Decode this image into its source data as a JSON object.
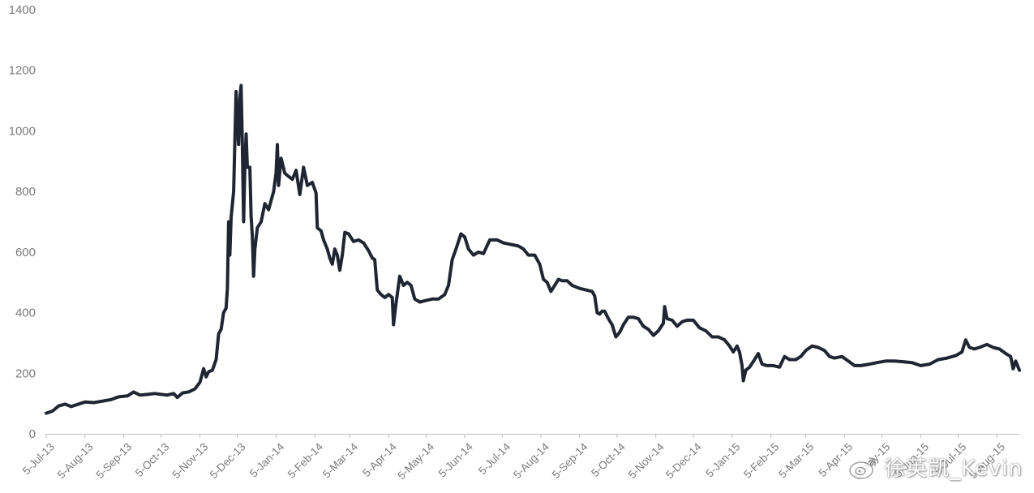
{
  "chart_data": {
    "type": "line",
    "title": "",
    "xlabel": "",
    "ylabel": "",
    "ylim": [
      0,
      1400
    ],
    "yticks": [
      0,
      200,
      400,
      600,
      800,
      1000,
      1200,
      1400
    ],
    "grid": false,
    "legend": "none",
    "line_color": "#1f2532",
    "xticklabels": [
      "5-Jul-13",
      "5-Aug-13",
      "5-Sep-13",
      "5-Oct-13",
      "5-Nov-13",
      "5-Dec-13",
      "5-Jan-14",
      "5-Feb-14",
      "5-Mar-14",
      "5-Apr-14",
      "5-May-14",
      "5-Jun-14",
      "5-Jul-14",
      "5-Aug-14",
      "5-Sep-14",
      "5-Oct-14",
      "5-Nov-14",
      "5-Dec-14",
      "5-Jan-15",
      "5-Feb-15",
      "5-Mar-15",
      "5-Apr-15",
      "5-May-15",
      "5-Jun-15",
      "5-Jul-15",
      "5-Aug-15"
    ],
    "series": [
      {
        "points": [
          [
            "2013-07-05",
            68
          ],
          [
            "2013-07-10",
            75
          ],
          [
            "2013-07-15",
            92
          ],
          [
            "2013-07-20",
            98
          ],
          [
            "2013-07-25",
            90
          ],
          [
            "2013-07-30",
            97
          ],
          [
            "2013-08-05",
            105
          ],
          [
            "2013-08-12",
            103
          ],
          [
            "2013-08-19",
            108
          ],
          [
            "2013-08-26",
            113
          ],
          [
            "2013-09-01",
            122
          ],
          [
            "2013-09-08",
            125
          ],
          [
            "2013-09-13",
            138
          ],
          [
            "2013-09-18",
            128
          ],
          [
            "2013-09-24",
            130
          ],
          [
            "2013-09-30",
            133
          ],
          [
            "2013-10-05",
            130
          ],
          [
            "2013-10-10",
            128
          ],
          [
            "2013-10-15",
            133
          ],
          [
            "2013-10-18",
            120
          ],
          [
            "2013-10-22",
            135
          ],
          [
            "2013-10-27",
            138
          ],
          [
            "2013-11-01",
            148
          ],
          [
            "2013-11-05",
            170
          ],
          [
            "2013-11-08",
            215
          ],
          [
            "2013-11-10",
            188
          ],
          [
            "2013-11-12",
            205
          ],
          [
            "2013-11-15",
            210
          ],
          [
            "2013-11-18",
            245
          ],
          [
            "2013-11-20",
            330
          ],
          [
            "2013-11-22",
            345
          ],
          [
            "2013-11-24",
            400
          ],
          [
            "2013-11-26",
            415
          ],
          [
            "2013-11-27",
            480
          ],
          [
            "2013-11-28",
            700
          ],
          [
            "2013-11-29",
            590
          ],
          [
            "2013-11-30",
            715
          ],
          [
            "2013-12-02",
            800
          ],
          [
            "2013-12-04",
            1130
          ],
          [
            "2013-12-05",
            1020
          ],
          [
            "2013-12-06",
            955
          ],
          [
            "2013-12-07",
            1110
          ],
          [
            "2013-12-08",
            1150
          ],
          [
            "2013-12-09",
            960
          ],
          [
            "2013-12-10",
            700
          ],
          [
            "2013-12-11",
            880
          ],
          [
            "2013-12-12",
            990
          ],
          [
            "2013-12-13",
            880
          ],
          [
            "2013-12-15",
            880
          ],
          [
            "2013-12-16",
            720
          ],
          [
            "2013-12-17",
            650
          ],
          [
            "2013-12-18",
            520
          ],
          [
            "2013-12-19",
            610
          ],
          [
            "2013-12-21",
            680
          ],
          [
            "2013-12-24",
            700
          ],
          [
            "2013-12-27",
            760
          ],
          [
            "2013-12-30",
            740
          ],
          [
            "2014-01-03",
            800
          ],
          [
            "2014-01-05",
            860
          ],
          [
            "2014-01-06",
            955
          ],
          [
            "2014-01-07",
            820
          ],
          [
            "2014-01-09",
            910
          ],
          [
            "2014-01-12",
            860
          ],
          [
            "2014-01-15",
            850
          ],
          [
            "2014-01-18",
            840
          ],
          [
            "2014-01-21",
            870
          ],
          [
            "2014-01-24",
            790
          ],
          [
            "2014-01-27",
            880
          ],
          [
            "2014-01-30",
            820
          ],
          [
            "2014-02-03",
            830
          ],
          [
            "2014-02-06",
            795
          ],
          [
            "2014-02-07",
            680
          ],
          [
            "2014-02-10",
            670
          ],
          [
            "2014-02-12",
            640
          ],
          [
            "2014-02-15",
            610
          ],
          [
            "2014-02-17",
            580
          ],
          [
            "2014-02-19",
            560
          ],
          [
            "2014-02-21",
            610
          ],
          [
            "2014-02-23",
            590
          ],
          [
            "2014-02-25",
            540
          ],
          [
            "2014-02-27",
            590
          ],
          [
            "2014-03-01",
            665
          ],
          [
            "2014-03-04",
            660
          ],
          [
            "2014-03-08",
            635
          ],
          [
            "2014-03-12",
            640
          ],
          [
            "2014-03-16",
            630
          ],
          [
            "2014-03-20",
            605
          ],
          [
            "2014-03-23",
            580
          ],
          [
            "2014-03-25",
            575
          ],
          [
            "2014-03-27",
            475
          ],
          [
            "2014-03-30",
            460
          ],
          [
            "2014-04-02",
            450
          ],
          [
            "2014-04-05",
            460
          ],
          [
            "2014-04-08",
            450
          ],
          [
            "2014-04-09",
            360
          ],
          [
            "2014-04-11",
            430
          ],
          [
            "2014-04-14",
            520
          ],
          [
            "2014-04-17",
            490
          ],
          [
            "2014-04-20",
            500
          ],
          [
            "2014-04-23",
            490
          ],
          [
            "2014-04-26",
            445
          ],
          [
            "2014-04-30",
            435
          ],
          [
            "2014-05-05",
            440
          ],
          [
            "2014-05-10",
            445
          ],
          [
            "2014-05-15",
            445
          ],
          [
            "2014-05-20",
            460
          ],
          [
            "2014-05-23",
            490
          ],
          [
            "2014-05-26",
            575
          ],
          [
            "2014-05-29",
            610
          ],
          [
            "2014-06-02",
            660
          ],
          [
            "2014-06-05",
            650
          ],
          [
            "2014-06-08",
            610
          ],
          [
            "2014-06-12",
            590
          ],
          [
            "2014-06-16",
            600
          ],
          [
            "2014-06-20",
            595
          ],
          [
            "2014-06-25",
            640
          ],
          [
            "2014-07-01",
            640
          ],
          [
            "2014-07-06",
            630
          ],
          [
            "2014-07-12",
            625
          ],
          [
            "2014-07-18",
            620
          ],
          [
            "2014-07-22",
            610
          ],
          [
            "2014-07-26",
            590
          ],
          [
            "2014-07-31",
            590
          ],
          [
            "2014-08-04",
            560
          ],
          [
            "2014-08-07",
            510
          ],
          [
            "2014-08-10",
            500
          ],
          [
            "2014-08-13",
            470
          ],
          [
            "2014-08-16",
            490
          ],
          [
            "2014-08-19",
            510
          ],
          [
            "2014-08-22",
            505
          ],
          [
            "2014-08-26",
            505
          ],
          [
            "2014-08-30",
            490
          ],
          [
            "2014-09-05",
            480
          ],
          [
            "2014-09-10",
            475
          ],
          [
            "2014-09-15",
            470
          ],
          [
            "2014-09-17",
            455
          ],
          [
            "2014-09-19",
            400
          ],
          [
            "2014-09-21",
            395
          ],
          [
            "2014-09-23",
            405
          ],
          [
            "2014-09-25",
            405
          ],
          [
            "2014-09-28",
            380
          ],
          [
            "2014-10-01",
            360
          ],
          [
            "2014-10-04",
            320
          ],
          [
            "2014-10-07",
            335
          ],
          [
            "2014-10-10",
            360
          ],
          [
            "2014-10-14",
            385
          ],
          [
            "2014-10-18",
            385
          ],
          [
            "2014-10-22",
            380
          ],
          [
            "2014-10-26",
            355
          ],
          [
            "2014-10-30",
            345
          ],
          [
            "2014-11-03",
            325
          ],
          [
            "2014-11-07",
            340
          ],
          [
            "2014-11-11",
            365
          ],
          [
            "2014-11-12",
            420
          ],
          [
            "2014-11-14",
            380
          ],
          [
            "2014-11-18",
            375
          ],
          [
            "2014-11-22",
            355
          ],
          [
            "2014-11-26",
            370
          ],
          [
            "2014-11-30",
            375
          ],
          [
            "2014-12-05",
            375
          ],
          [
            "2014-12-10",
            350
          ],
          [
            "2014-12-15",
            340
          ],
          [
            "2014-12-20",
            320
          ],
          [
            "2014-12-25",
            320
          ],
          [
            "2014-12-30",
            310
          ],
          [
            "2015-01-03",
            290
          ],
          [
            "2015-01-06",
            270
          ],
          [
            "2015-01-09",
            290
          ],
          [
            "2015-01-11",
            270
          ],
          [
            "2015-01-13",
            225
          ],
          [
            "2015-01-14",
            175
          ],
          [
            "2015-01-16",
            210
          ],
          [
            "2015-01-19",
            220
          ],
          [
            "2015-01-23",
            245
          ],
          [
            "2015-01-26",
            265
          ],
          [
            "2015-01-29",
            230
          ],
          [
            "2015-02-02",
            225
          ],
          [
            "2015-02-07",
            225
          ],
          [
            "2015-02-12",
            220
          ],
          [
            "2015-02-16",
            255
          ],
          [
            "2015-02-20",
            245
          ],
          [
            "2015-02-25",
            245
          ],
          [
            "2015-03-01",
            255
          ],
          [
            "2015-03-05",
            275
          ],
          [
            "2015-03-10",
            290
          ],
          [
            "2015-03-15",
            285
          ],
          [
            "2015-03-20",
            275
          ],
          [
            "2015-03-24",
            255
          ],
          [
            "2015-03-28",
            250
          ],
          [
            "2015-04-03",
            255
          ],
          [
            "2015-04-08",
            240
          ],
          [
            "2015-04-13",
            225
          ],
          [
            "2015-04-18",
            225
          ],
          [
            "2015-04-25",
            230
          ],
          [
            "2015-05-01",
            235
          ],
          [
            "2015-05-08",
            240
          ],
          [
            "2015-05-15",
            240
          ],
          [
            "2015-05-22",
            238
          ],
          [
            "2015-05-29",
            235
          ],
          [
            "2015-06-05",
            225
          ],
          [
            "2015-06-12",
            230
          ],
          [
            "2015-06-19",
            245
          ],
          [
            "2015-06-26",
            250
          ],
          [
            "2015-07-03",
            258
          ],
          [
            "2015-07-08",
            270
          ],
          [
            "2015-07-11",
            310
          ],
          [
            "2015-07-14",
            285
          ],
          [
            "2015-07-18",
            280
          ],
          [
            "2015-07-22",
            285
          ],
          [
            "2015-07-28",
            295
          ],
          [
            "2015-08-02",
            285
          ],
          [
            "2015-08-07",
            280
          ],
          [
            "2015-08-12",
            265
          ],
          [
            "2015-08-16",
            255
          ],
          [
            "2015-08-18",
            215
          ],
          [
            "2015-08-20",
            240
          ],
          [
            "2015-08-23",
            210
          ]
        ]
      }
    ]
  },
  "watermark": {
    "text": "徐英凯_Kevin"
  }
}
